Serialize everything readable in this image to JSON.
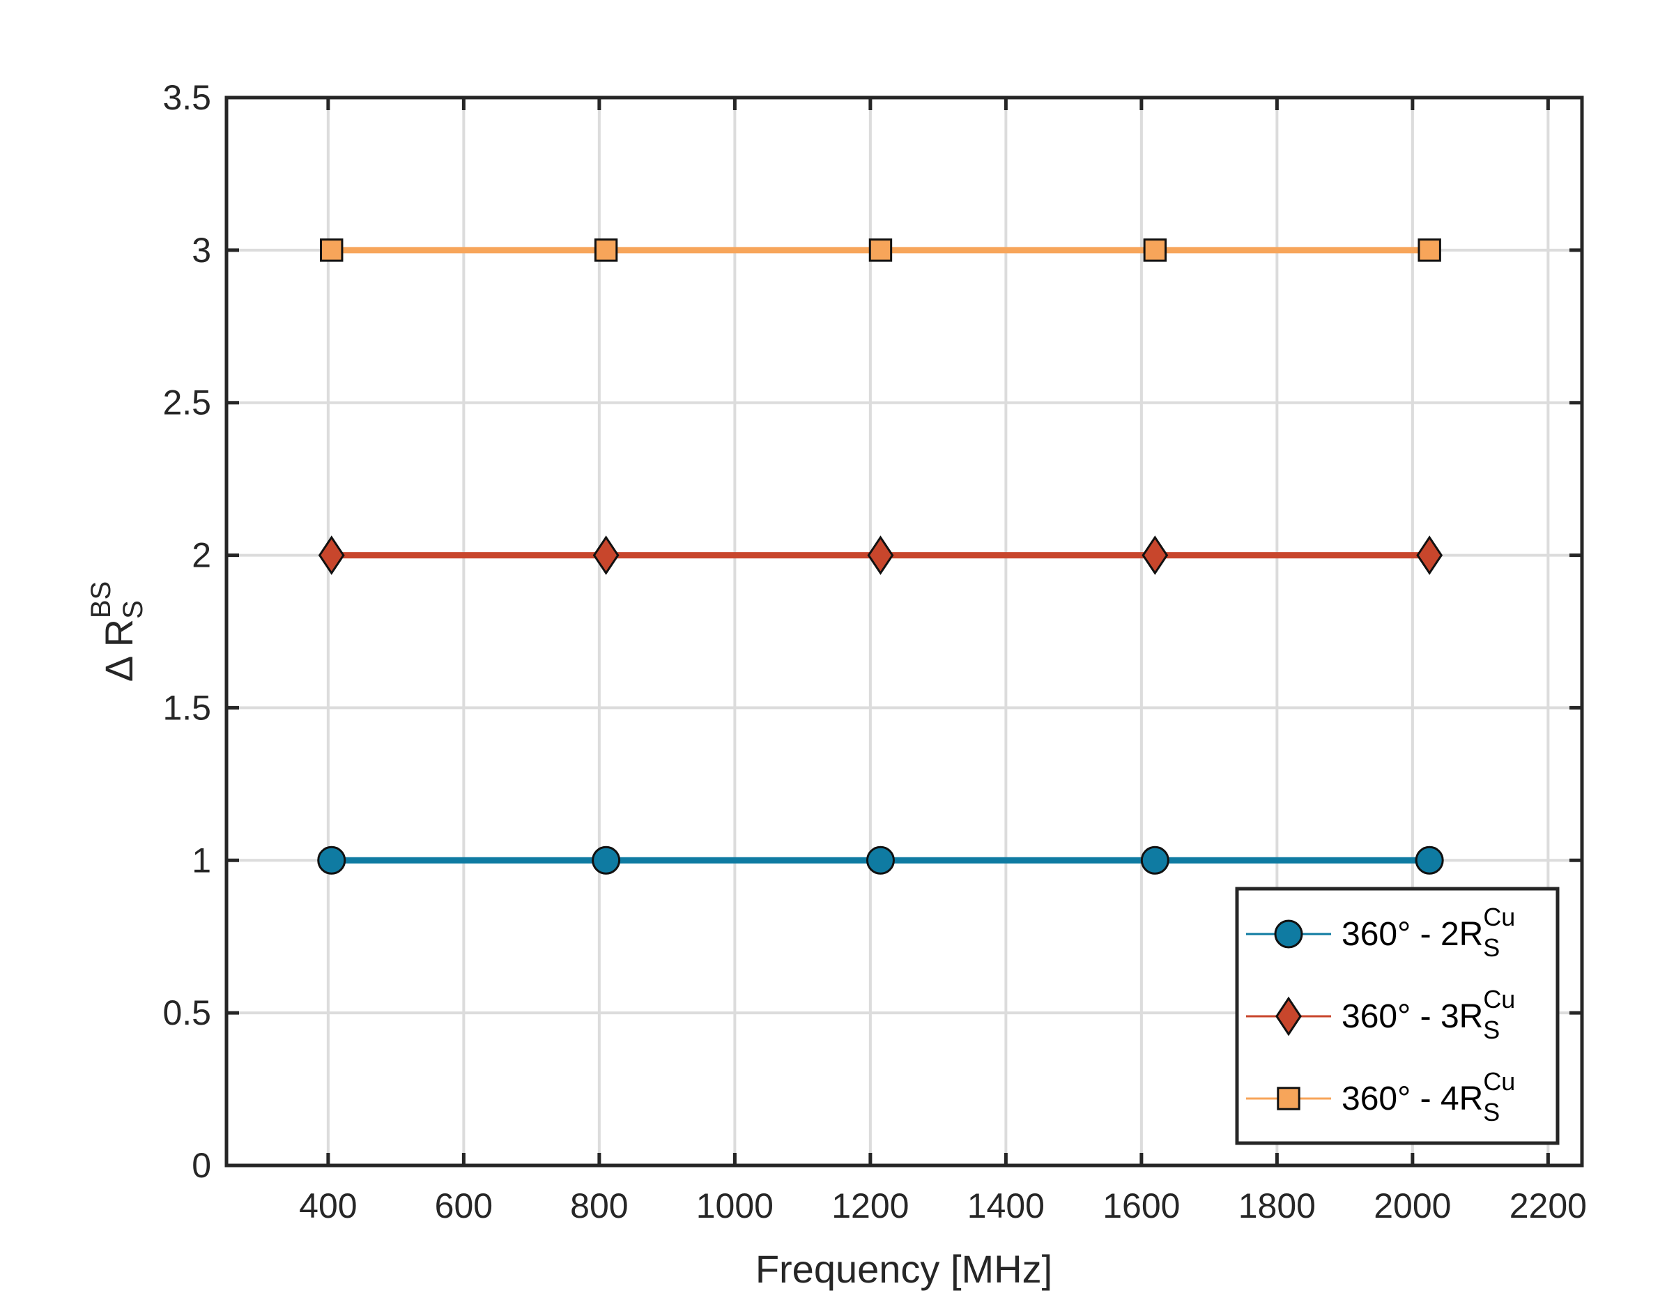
{
  "chart_data": {
    "type": "line",
    "xlabel": "Frequency [MHz]",
    "ylabel": {
      "main": "Δ R",
      "sub": "S",
      "sup": "BS"
    },
    "xlim": [
      250,
      2250
    ],
    "ylim": [
      0,
      3.5
    ],
    "xticks": [
      400,
      600,
      800,
      1000,
      1200,
      1400,
      1600,
      1800,
      2000,
      2200
    ],
    "yticks": [
      0,
      0.5,
      1,
      1.5,
      2,
      2.5,
      3,
      3.5
    ],
    "xtick_labels": [
      "400",
      "600",
      "800",
      "1000",
      "1200",
      "1400",
      "1600",
      "1800",
      "2000",
      "2200"
    ],
    "ytick_labels": [
      "0",
      "0.5",
      "1",
      "1.5",
      "2",
      "2.5",
      "3",
      "3.5"
    ],
    "grid": true,
    "legend_position": "bottom-right",
    "x": [
      405,
      810,
      1215,
      1620,
      2025
    ],
    "series": [
      {
        "name": "360° - 2R",
        "name_sub": "S",
        "name_sup": "Cu",
        "values": [
          1,
          1,
          1,
          1,
          1
        ],
        "marker": "circle",
        "color": "#0f7ba2"
      },
      {
        "name": "360° - 3R",
        "name_sub": "S",
        "name_sup": "Cu",
        "values": [
          2,
          2,
          2,
          2,
          2
        ],
        "marker": "diamond",
        "color": "#c8462c"
      },
      {
        "name": "360° - 4R",
        "name_sub": "S",
        "name_sup": "Cu",
        "values": [
          3,
          3,
          3,
          3,
          3
        ],
        "marker": "square",
        "color": "#f7a55a"
      }
    ]
  }
}
